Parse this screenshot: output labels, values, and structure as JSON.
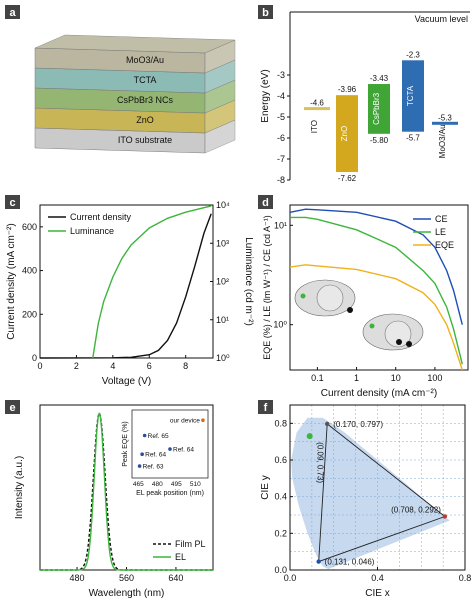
{
  "chart_data": [
    {
      "panel": "a",
      "type": "diagram",
      "layers": [
        "MoO3/Au",
        "TCTA",
        "CsPbBr3 NCs",
        "ZnO",
        "ITO substrate"
      ],
      "layer_colors": [
        "#b7b39a",
        "#86b7b2",
        "#8fb36b",
        "#c5b24e",
        "#c8c8c8"
      ]
    },
    {
      "panel": "b",
      "type": "bar",
      "ylabel": "Energy (eV)",
      "vacuum_label": "Vacuum level",
      "ylim": [
        -8,
        0
      ],
      "levels": [
        {
          "name": "ITO",
          "top": -4.6,
          "bottom": -4.6,
          "top_label": "-4.6",
          "bottom_label": "",
          "color": "#d8c35a"
        },
        {
          "name": "ZnO",
          "top": -3.96,
          "bottom": -7.62,
          "top_label": "-3.96",
          "bottom_label": "-7.62",
          "color": "#d3a81e"
        },
        {
          "name": "CsPbBr3",
          "top": -3.43,
          "bottom": -5.8,
          "top_label": "-3.43",
          "bottom_label": "-5.80",
          "color": "#3fa535"
        },
        {
          "name": "TCTA",
          "top": -2.3,
          "bottom": -5.7,
          "top_label": "-2.3",
          "bottom_label": "-5.7",
          "color": "#2f6db3"
        },
        {
          "name": "MoO3/Au",
          "top": -5.3,
          "bottom": -5.3,
          "top_label": "-5.3",
          "bottom_label": "",
          "color": "#2f6db3"
        }
      ]
    },
    {
      "panel": "c",
      "type": "line",
      "xlabel": "Voltage (V)",
      "ylabel": "Current density (mA cm⁻²)",
      "y2label": "Luminance (cd m⁻²)",
      "xlim": [
        0,
        9.5
      ],
      "ylim": [
        0,
        700
      ],
      "y2lim_log": [
        0,
        4
      ],
      "xticks": [
        "0",
        "2",
        "4",
        "6",
        "8"
      ],
      "yticks": [
        "0",
        "200",
        "400",
        "600"
      ],
      "y2ticks": [
        "10⁰",
        "10¹",
        "10²",
        "10³",
        "10⁴"
      ],
      "series": [
        {
          "name": "Current density",
          "color": "#111111",
          "axis": "left",
          "x": [
            0,
            4,
            5,
            6,
            6.5,
            7,
            7.5,
            8,
            8.5,
            9,
            9.4
          ],
          "y": [
            0,
            1,
            3,
            15,
            35,
            80,
            160,
            280,
            420,
            570,
            660
          ]
        },
        {
          "name": "Luminance",
          "color": "#3db53d",
          "axis": "right",
          "x": [
            2.9,
            3.0,
            3.2,
            3.5,
            4,
            4.5,
            5,
            6,
            7,
            8,
            9,
            9.4
          ],
          "y": [
            1,
            2,
            8,
            30,
            130,
            400,
            900,
            2500,
            4500,
            6500,
            8500,
            9500
          ]
        }
      ]
    },
    {
      "panel": "d",
      "type": "line",
      "xlabel": "Current density (mA cm⁻²)",
      "ylabel": "EQE (%) / LE (lm W⁻¹) / CE (cd A⁻¹)",
      "xlog": true,
      "ylog": true,
      "xlim": [
        0.02,
        700
      ],
      "ylim": [
        0.35,
        16
      ],
      "xticks": [
        "0.1",
        "1",
        "10",
        "100"
      ],
      "yticks": [
        "10⁰",
        "10¹"
      ],
      "series": [
        {
          "name": "CE",
          "color": "#1f4fb3",
          "x": [
            0.02,
            0.05,
            0.1,
            1,
            10,
            50,
            100,
            200,
            300,
            500
          ],
          "y": [
            13.5,
            14.5,
            14.3,
            13.5,
            11.0,
            8.0,
            6.0,
            3.5,
            2.2,
            1.0
          ]
        },
        {
          "name": "LE",
          "color": "#3db53d",
          "x": [
            0.02,
            0.05,
            0.1,
            1,
            10,
            50,
            100,
            200,
            300,
            500
          ],
          "y": [
            12.0,
            12.0,
            11.5,
            9.0,
            6.0,
            3.5,
            2.6,
            1.5,
            0.9,
            0.4
          ]
        },
        {
          "name": "EQE",
          "color": "#f0b21a",
          "x": [
            0.02,
            0.05,
            0.1,
            1,
            10,
            50,
            100,
            200,
            300,
            500
          ],
          "y": [
            3.8,
            4.0,
            3.9,
            3.6,
            2.9,
            2.1,
            1.6,
            1.0,
            0.65,
            0.35
          ]
        }
      ]
    },
    {
      "panel": "e",
      "type": "line",
      "xlabel": "Wavelength (nm)",
      "ylabel": "Intensity (a.u.)",
      "xlim": [
        420,
        700
      ],
      "ylim": [
        0,
        1.05
      ],
      "xticks": [
        "480",
        "560",
        "640"
      ],
      "series": [
        {
          "name": "Film PL",
          "color": "#111111",
          "center": 516,
          "fwhm": 22
        },
        {
          "name": "EL",
          "color": "#3db53d",
          "center": 516,
          "fwhm": 19
        }
      ],
      "inset": {
        "xlabel": "EL peak position (nm)",
        "ylabel": "Peak EQE (%)",
        "xticks": [
          "465",
          "480",
          "495",
          "510"
        ],
        "points": [
          {
            "label": "our device",
            "x": 516,
            "y": 3.9,
            "color": "#d86a1a"
          },
          {
            "label": "Ref. 65",
            "x": 470,
            "y": 3.0,
            "color": "#2a4f9c"
          },
          {
            "label": "Ref. 64",
            "x": 468,
            "y": 1.9,
            "color": "#2a4f9c"
          },
          {
            "label": "Ref. 64",
            "x": 490,
            "y": 2.2,
            "color": "#2a4f9c"
          },
          {
            "label": "Ref. 63",
            "x": 466,
            "y": 1.2,
            "color": "#2a4f9c"
          }
        ]
      }
    },
    {
      "panel": "f",
      "type": "scatter",
      "xlabel": "CIE x",
      "ylabel": "CIE y",
      "xlim": [
        0,
        0.8
      ],
      "ylim": [
        0,
        0.9
      ],
      "xticks": [
        "0.0",
        "0.4",
        "0.8"
      ],
      "yticks": [
        "0.0",
        "0.2",
        "0.4",
        "0.6",
        "0.8"
      ],
      "points": [
        {
          "label": "(0.170, 0.797)",
          "x": 0.17,
          "y": 0.797,
          "color": "#555555"
        },
        {
          "label": "(0.708, 0.292)",
          "x": 0.708,
          "y": 0.292,
          "color": "#c0392b"
        },
        {
          "label": "(0.131, 0.046)",
          "x": 0.131,
          "y": 0.046,
          "color": "#1f4fb3"
        },
        {
          "label": "(0.09, 0.73)",
          "x": 0.09,
          "y": 0.73,
          "color": "#3db53d"
        }
      ]
    }
  ]
}
